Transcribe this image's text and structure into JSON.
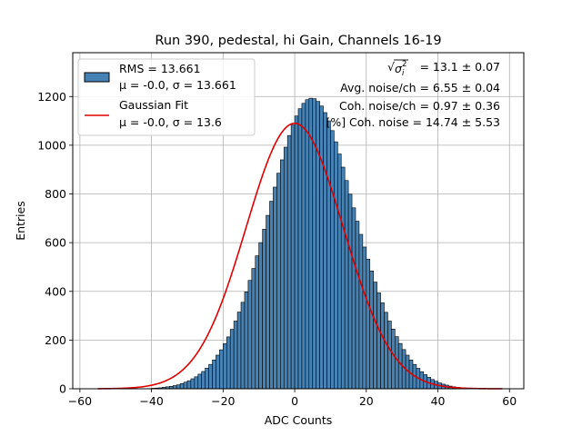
{
  "chart_data": {
    "type": "histogram",
    "title": "Run 390, pedestal, hi Gain, Channels 16-19",
    "xlabel": "ADC Counts",
    "ylabel": "Entries",
    "xlim": [
      -62,
      64
    ],
    "ylim": [
      0,
      1380
    ],
    "xticks": [
      -60,
      -40,
      -20,
      0,
      20,
      40,
      60
    ],
    "xtick_labels": [
      "−60",
      "−40",
      "−20",
      "0",
      "20",
      "40",
      "60"
    ],
    "yticks": [
      0,
      200,
      400,
      600,
      800,
      1000,
      1200
    ],
    "ytick_labels": [
      "0",
      "200",
      "400",
      "600",
      "800",
      "1000",
      "1200"
    ],
    "grid": true,
    "legend_position": "top-left",
    "histogram": {
      "name": "RMS = 13.661",
      "stats_label": "μ = -0.0, σ = 13.661",
      "color": "#4682b4",
      "edge_color": "#000000",
      "bin_edges_start": -55,
      "bin_width": 1,
      "counts": [
        0,
        0,
        0,
        0,
        0,
        0,
        0,
        0,
        0,
        0,
        0,
        0,
        0,
        0,
        1,
        2,
        3,
        4,
        6,
        8,
        10,
        13,
        16,
        21,
        27,
        33,
        41,
        49,
        60,
        71,
        85,
        100,
        118,
        138,
        160,
        185,
        213,
        244,
        278,
        315,
        355,
        398,
        445,
        494,
        546,
        600,
        655,
        712,
        770,
        828,
        885,
        940,
        992,
        1040,
        1083,
        1120,
        1150,
        1172,
        1187,
        1193,
        1191,
        1180,
        1161,
        1134,
        1100,
        1060,
        1014,
        964,
        910,
        855,
        799,
        743,
        688,
        634,
        582,
        532,
        484,
        438,
        394,
        353,
        314,
        278,
        245,
        214,
        186,
        161,
        138,
        118,
        100,
        84,
        70,
        58,
        47,
        38,
        31,
        24,
        19,
        15,
        11,
        8,
        6,
        4,
        3,
        2,
        1,
        1,
        0,
        0,
        0,
        0,
        0,
        0,
        0,
        0,
        0,
        0,
        0
      ]
    },
    "fit": {
      "name": "Gaussian Fit",
      "stats_label": "μ = -0.0, σ = 13.6",
      "color": "#e00000",
      "mu": 0.0,
      "sigma": 13.6,
      "x_range": [
        -55,
        58
      ]
    },
    "annotations": [
      {
        "prefix": "",
        "value": " = 13.1 ± 0.07"
      },
      {
        "text": "Avg. noise/ch = 6.55 ± 0.04"
      },
      {
        "text": "Coh. noise/ch = 0.97 ± 0.36"
      },
      {
        "text": "[%] Coh. noise = 14.74 ± 5.53"
      }
    ]
  }
}
